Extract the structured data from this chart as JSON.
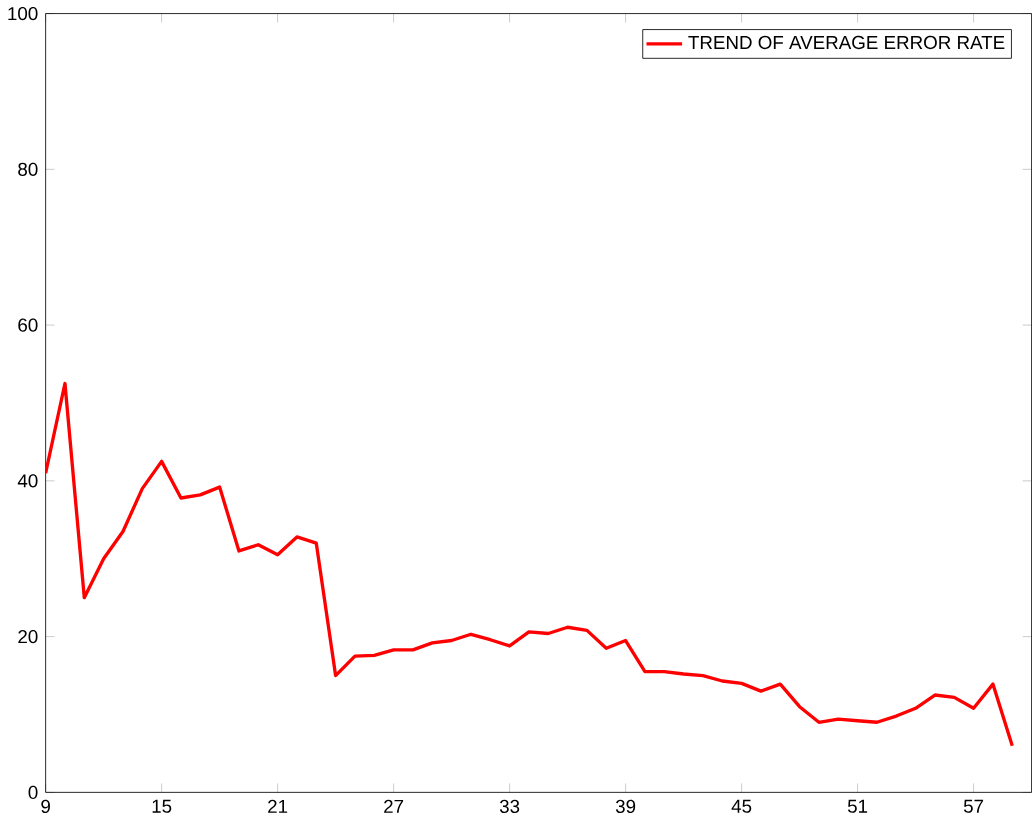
{
  "chart_data": {
    "type": "line",
    "x": [
      9,
      10,
      11,
      12,
      13,
      14,
      15,
      16,
      17,
      18,
      19,
      20,
      21,
      22,
      23,
      24,
      25,
      26,
      27,
      28,
      29,
      30,
      31,
      32,
      33,
      34,
      35,
      36,
      37,
      38,
      39,
      40,
      41,
      42,
      43,
      44,
      45,
      46,
      47,
      48,
      49,
      50,
      51,
      52,
      53,
      54,
      55,
      56,
      57,
      58,
      59
    ],
    "series": [
      {
        "name": "TREND OF AVERAGE ERROR RATE",
        "color": "#ff0000",
        "values": [
          41,
          52.5,
          25,
          30,
          33.5,
          39,
          42.5,
          37.8,
          38.2,
          39.2,
          31,
          31.8,
          30.5,
          32.8,
          32,
          15,
          17.5,
          17.6,
          18.3,
          18.3,
          19.2,
          19.5,
          20.3,
          19.6,
          18.8,
          20.6,
          20.4,
          21.2,
          20.8,
          18.5,
          19.5,
          15.5,
          15.5,
          15.2,
          15,
          14.3,
          14,
          13,
          13.9,
          11,
          9,
          9.4,
          9.2,
          9,
          9.8,
          10.8,
          12.5,
          12.2,
          10.8,
          13.9,
          6
        ]
      }
    ],
    "xlim": [
      9,
      60
    ],
    "ylim": [
      0,
      100
    ],
    "xticks": [
      9,
      15,
      21,
      27,
      33,
      39,
      45,
      51,
      57
    ],
    "yticks": [
      0,
      20,
      40,
      60,
      80,
      100
    ],
    "legend": "top right",
    "grid": false,
    "marker": "none",
    "line_style": "solid"
  }
}
